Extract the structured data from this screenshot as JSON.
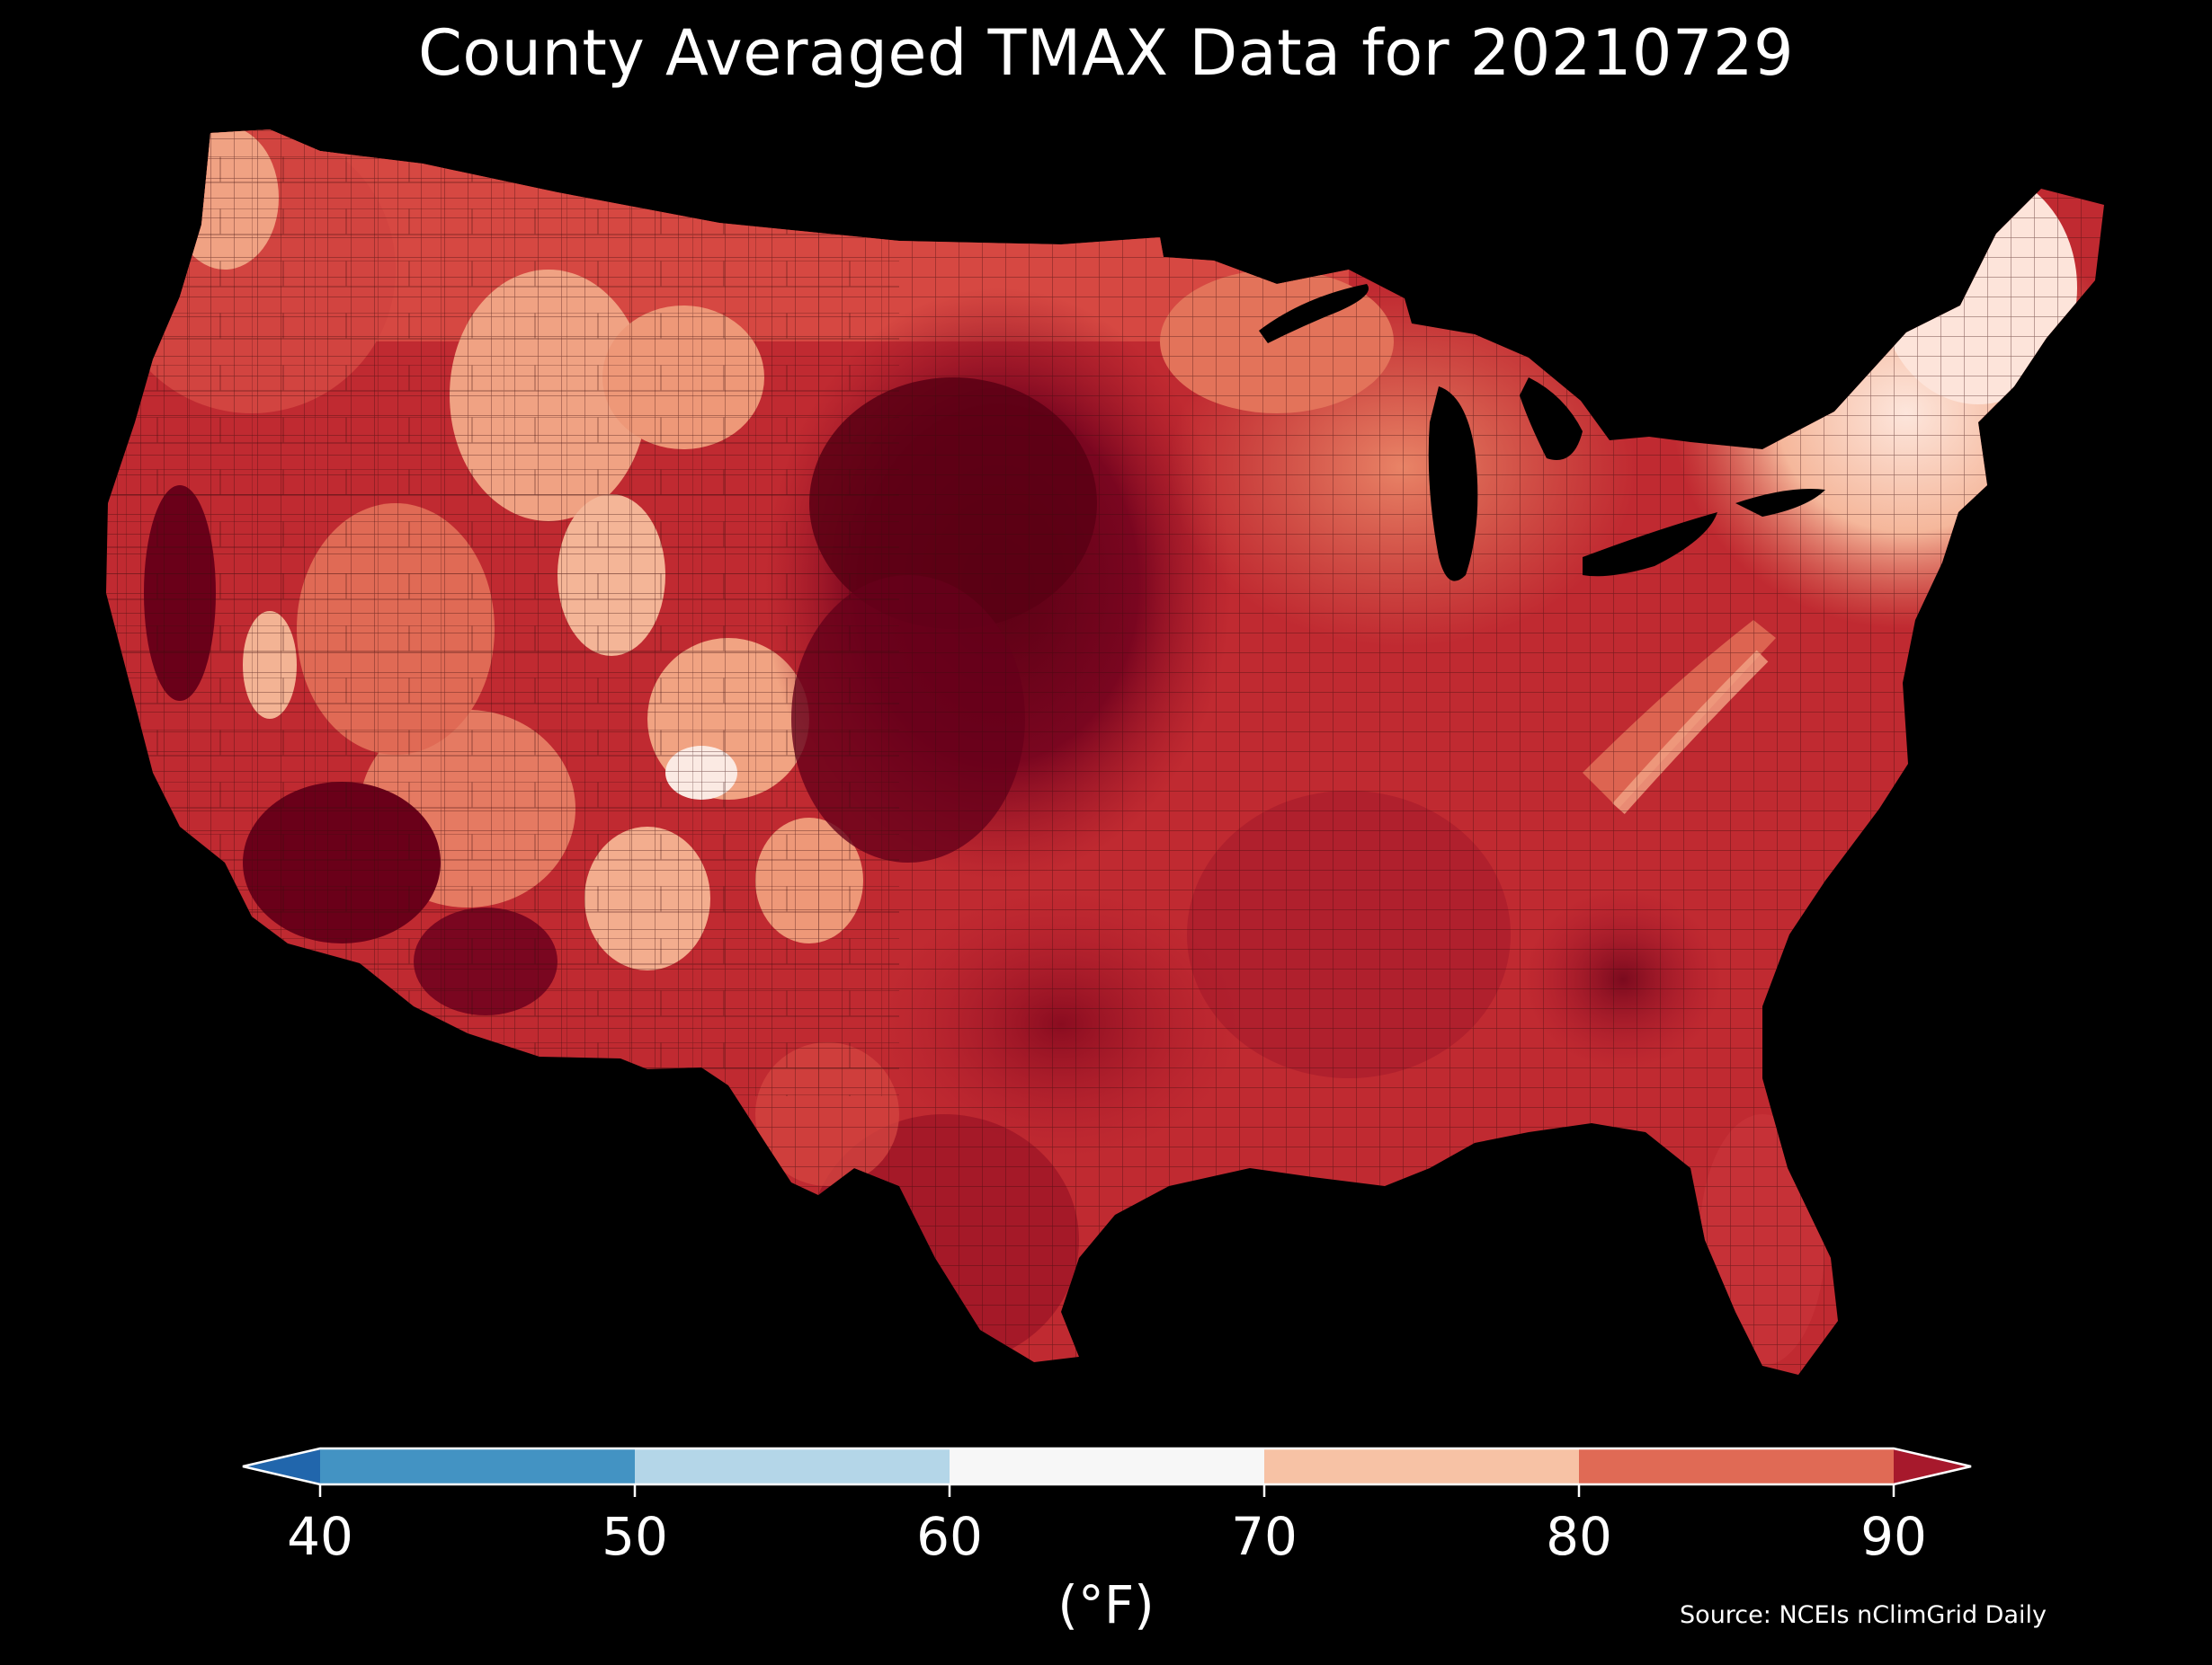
{
  "title": "County Averaged TMAX Data for 20210729",
  "colorbar": {
    "ticks": [
      "40",
      "50",
      "60",
      "70",
      "80",
      "90"
    ],
    "unit_label": "(°F)",
    "bins": [
      {
        "range": "<40",
        "color": "#2166ac"
      },
      {
        "range": "40-50",
        "color": "#4393c3"
      },
      {
        "range": "50-60",
        "color": "#b4d6e8"
      },
      {
        "range": "60-70",
        "color": "#f7f7f7"
      },
      {
        "range": "70-80",
        "color": "#f7c2a5"
      },
      {
        "range": "80-90",
        "color": "#e06a55"
      },
      {
        "range": ">90",
        "color": "#a7192c"
      }
    ]
  },
  "source": "Source: NCEIs nClimGrid Daily",
  "map_colors": {
    "background": "#000000",
    "extreme_heat": "#6a0019",
    "very_hot": "#99101f",
    "hot": "#c62d33",
    "warm": "#df6a57",
    "mild": "#f1a382",
    "cool": "#fadad0",
    "lightest": "#ffffff",
    "county_lines": "#3a0b0b"
  }
}
